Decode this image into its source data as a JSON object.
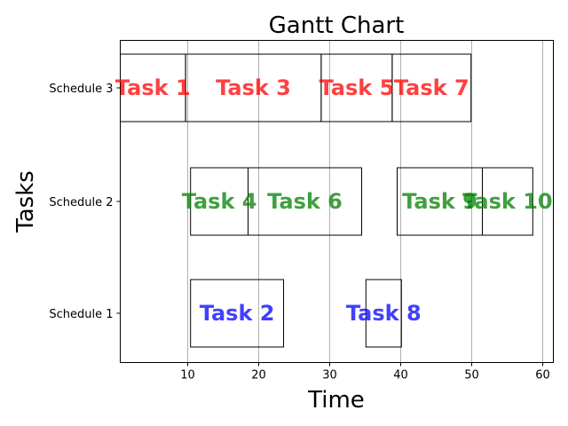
{
  "chart_data": {
    "type": "gantt",
    "title": "Gantt Chart",
    "xlabel": "Time",
    "ylabel": "Tasks",
    "xlim": [
      0.5,
      61.5
    ],
    "xticks": [
      10,
      20,
      30,
      40,
      50,
      60
    ],
    "grid": "x",
    "rows": [
      "Schedule 1",
      "Schedule 2",
      "Schedule 3"
    ],
    "row_colors": {
      "Schedule 1": "#0000ff",
      "Schedule 2": "#008000",
      "Schedule 3": "#ff0000"
    },
    "tasks": [
      {
        "name": "Task 1",
        "row": "Schedule 3",
        "start": 0.5,
        "end": 9.7
      },
      {
        "name": "Task 3",
        "row": "Schedule 3",
        "start": 9.7,
        "end": 28.8
      },
      {
        "name": "Task 5",
        "row": "Schedule 3",
        "start": 28.8,
        "end": 38.8
      },
      {
        "name": "Task 7",
        "row": "Schedule 3",
        "start": 38.8,
        "end": 49.9
      },
      {
        "name": "Task 4",
        "row": "Schedule 2",
        "start": 10.4,
        "end": 18.5
      },
      {
        "name": "Task 6",
        "row": "Schedule 2",
        "start": 18.5,
        "end": 34.5
      },
      {
        "name": "Task 9",
        "row": "Schedule 2",
        "start": 39.5,
        "end": 51.5
      },
      {
        "name": "Task 10",
        "row": "Schedule 2",
        "start": 51.5,
        "end": 58.6
      },
      {
        "name": "Task 2",
        "row": "Schedule 1",
        "start": 10.4,
        "end": 23.5
      },
      {
        "name": "Task 8",
        "row": "Schedule 1",
        "start": 35.1,
        "end": 40.1
      }
    ]
  }
}
